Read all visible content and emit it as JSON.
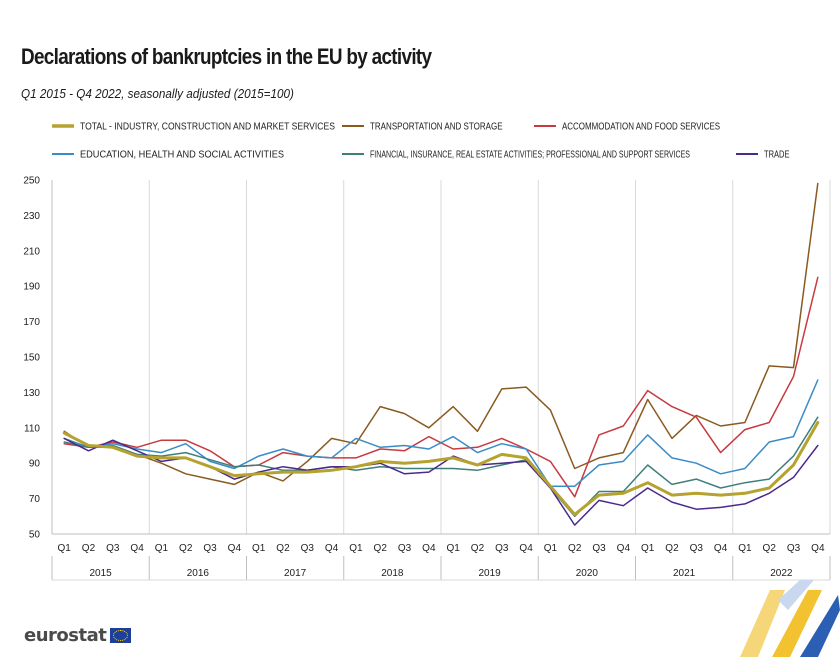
{
  "header": {
    "title": "Declarations of bankruptcies in the EU by activity",
    "subtitle": "Q1 2015 - Q4 2022, seasonally adjusted  (2015=100)"
  },
  "footer": {
    "logo_text": "eurostat"
  },
  "chart_data": {
    "type": "line",
    "title": "Declarations of bankruptcies in the EU by activity",
    "subtitle": "Q1 2015 - Q4 2022, seasonally adjusted  (2015=100)",
    "xlabel": "",
    "ylabel": "",
    "ylim": [
      50,
      250
    ],
    "yticks": [
      50,
      70,
      90,
      110,
      130,
      150,
      170,
      190,
      210,
      230,
      250
    ],
    "grid": "vertical",
    "legend_position": "top",
    "quarters": [
      "Q1",
      "Q2",
      "Q3",
      "Q4"
    ],
    "years": [
      "2015",
      "2016",
      "2017",
      "2018",
      "2019",
      "2020",
      "2021",
      "2022"
    ],
    "categories": [
      "Q1 2015",
      "Q2 2015",
      "Q3 2015",
      "Q4 2015",
      "Q1 2016",
      "Q2 2016",
      "Q3 2016",
      "Q4 2016",
      "Q1 2017",
      "Q2 2017",
      "Q3 2017",
      "Q4 2017",
      "Q1 2018",
      "Q2 2018",
      "Q3 2018",
      "Q4 2018",
      "Q1 2019",
      "Q2 2019",
      "Q3 2019",
      "Q4 2019",
      "Q1 2020",
      "Q2 2020",
      "Q3 2020",
      "Q4 2020",
      "Q1 2021",
      "Q2 2021",
      "Q3 2021",
      "Q4 2021",
      "Q1 2022",
      "Q2 2022",
      "Q3 2022",
      "Q4 2022"
    ],
    "series": [
      {
        "name": "TOTAL - INDUSTRY, CONSTRUCTION AND MARKET SERVICES",
        "color": "#b5a22f",
        "width": 3,
        "values": [
          107,
          100,
          99,
          94,
          93,
          93,
          88,
          83,
          84,
          85,
          85,
          86,
          88,
          91,
          90,
          91,
          93,
          89,
          95,
          93,
          77,
          61,
          72,
          73,
          79,
          72,
          73,
          72,
          73,
          76,
          89,
          113
        ]
      },
      {
        "name": "TRANSPORTATION AND STORAGE",
        "color": "#8a5a20",
        "width": 1.5,
        "values": [
          108,
          99,
          99,
          95,
          90,
          84,
          81,
          78,
          85,
          80,
          91,
          104,
          101,
          122,
          118,
          110,
          122,
          108,
          132,
          133,
          120,
          87,
          93,
          96,
          126,
          104,
          117,
          111,
          113,
          145,
          144,
          248
        ]
      },
      {
        "name": "ACCOMMODATION AND FOOD SERVICES",
        "color": "#c73a3f",
        "width": 1.5,
        "values": [
          101,
          99,
          102,
          99,
          103,
          103,
          97,
          88,
          89,
          96,
          94,
          93,
          93,
          98,
          97,
          105,
          98,
          99,
          104,
          98,
          91,
          71,
          106,
          111,
          131,
          122,
          116,
          96,
          109,
          113,
          139,
          195
        ]
      },
      {
        "name": "EDUCATION,  HEALTH AND SOCIAL ACTIVITIES",
        "color": "#3a8cc6",
        "width": 1.5,
        "values": [
          104,
          99,
          101,
          98,
          96,
          101,
          91,
          87,
          94,
          98,
          94,
          93,
          104,
          99,
          100,
          98,
          105,
          96,
          101,
          98,
          77,
          77,
          89,
          91,
          106,
          93,
          90,
          84,
          87,
          102,
          105,
          137
        ]
      },
      {
        "name": "FINANCIAL, INSURANCE, REAL ESTATE ACTIVITIES; PROFESSIONAL AND SUPPORT SERVICES",
        "color": "#3f7f7a",
        "width": 1.5,
        "values": [
          102,
          99,
          100,
          95,
          94,
          96,
          92,
          88,
          89,
          86,
          86,
          88,
          86,
          88,
          87,
          87,
          87,
          86,
          89,
          92,
          76,
          60,
          74,
          74,
          89,
          78,
          81,
          76,
          79,
          81,
          94,
          116
        ]
      },
      {
        "name": "TRADE",
        "color": "#4b2a8f",
        "width": 1.5,
        "values": [
          104,
          97,
          103,
          97,
          91,
          93,
          88,
          81,
          85,
          88,
          86,
          88,
          88,
          90,
          84,
          85,
          94,
          89,
          90,
          91,
          76,
          55,
          69,
          66,
          76,
          68,
          64,
          65,
          67,
          73,
          82,
          100
        ]
      }
    ]
  }
}
